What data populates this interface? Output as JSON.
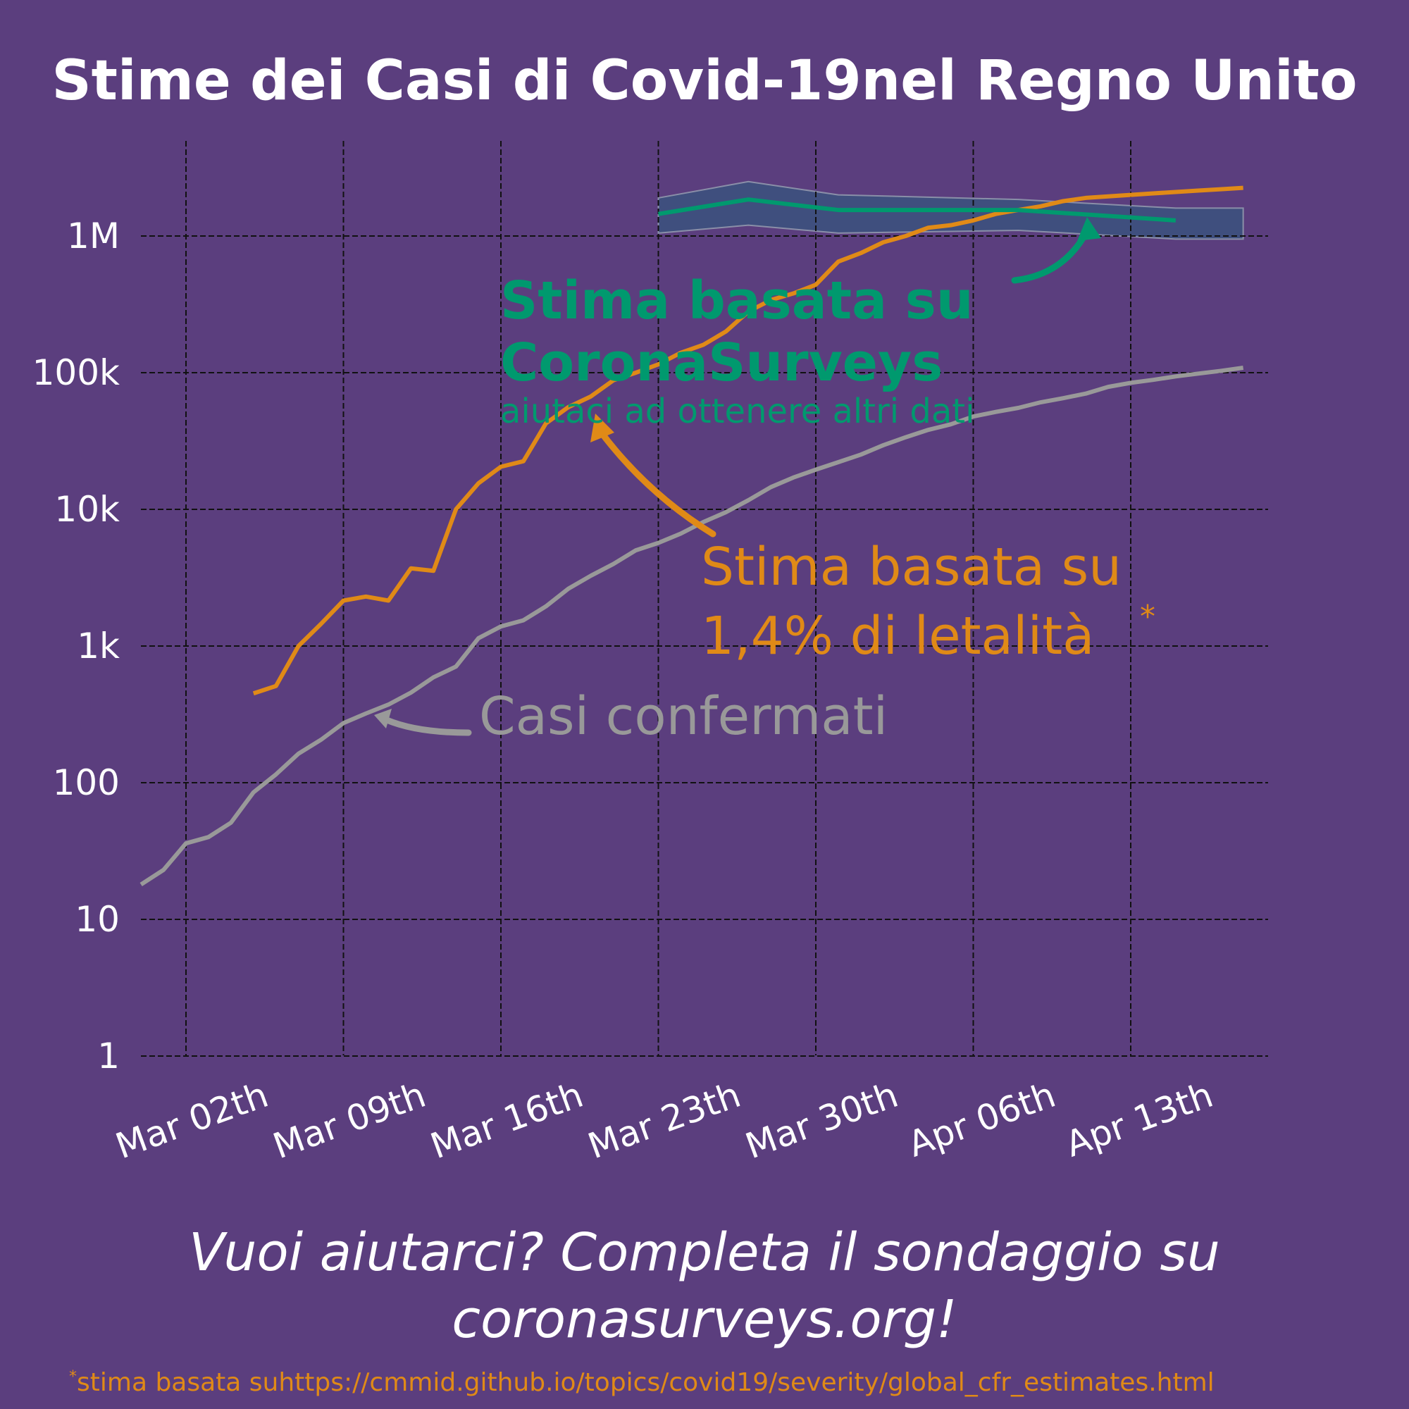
{
  "title": "Stime dei Casi di Covid-19nel Regno Unito",
  "chart_data": {
    "type": "line",
    "yscale": "log",
    "grid": true,
    "ylim": [
      1,
      4000000
    ],
    "xlim": [
      "2020-02-25",
      "2020-04-18"
    ],
    "y_ticks": [
      {
        "value": 1,
        "label": "1"
      },
      {
        "value": 10,
        "label": "10"
      },
      {
        "value": 100,
        "label": "100"
      },
      {
        "value": 1000,
        "label": "1k"
      },
      {
        "value": 10000,
        "label": "10k"
      },
      {
        "value": 100000,
        "label": "100k"
      },
      {
        "value": 1000000,
        "label": "1M"
      }
    ],
    "x_ticks": [
      {
        "date": "2020-03-02",
        "label": "Mar 02th"
      },
      {
        "date": "2020-03-09",
        "label": "Mar 09th"
      },
      {
        "date": "2020-03-16",
        "label": "Mar 16th"
      },
      {
        "date": "2020-03-23",
        "label": "Mar 23th"
      },
      {
        "date": "2020-03-30",
        "label": "Mar 30th"
      },
      {
        "date": "2020-04-06",
        "label": "Apr 06th"
      },
      {
        "date": "2020-04-13",
        "label": "Apr 13th"
      }
    ],
    "series": [
      {
        "name": "Casi confermati",
        "color": "#999999",
        "x": [
          "2020-02-29",
          "2020-03-01",
          "2020-03-02",
          "2020-03-03",
          "2020-03-04",
          "2020-03-05",
          "2020-03-06",
          "2020-03-07",
          "2020-03-08",
          "2020-03-09",
          "2020-03-10",
          "2020-03-11",
          "2020-03-12",
          "2020-03-13",
          "2020-03-14",
          "2020-03-15",
          "2020-03-16",
          "2020-03-17",
          "2020-03-18",
          "2020-03-19",
          "2020-03-20",
          "2020-03-21",
          "2020-03-22",
          "2020-03-23",
          "2020-03-24",
          "2020-03-25",
          "2020-03-26",
          "2020-03-27",
          "2020-03-28",
          "2020-03-29",
          "2020-03-30",
          "2020-03-31",
          "2020-04-01",
          "2020-04-02",
          "2020-04-03",
          "2020-04-04",
          "2020-04-05",
          "2020-04-06",
          "2020-04-07",
          "2020-04-08",
          "2020-04-09",
          "2020-04-10",
          "2020-04-11",
          "2020-04-12",
          "2020-04-13",
          "2020-04-14",
          "2020-04-15",
          "2020-04-16",
          "2020-04-17",
          "2020-04-18"
        ],
        "values": [
          18,
          23,
          36,
          40,
          51,
          85,
          115,
          163,
          206,
          273,
          321,
          373,
          456,
          590,
          707,
          1140,
          1391,
          1543,
          1950,
          2626,
          3269,
          3983,
          5018,
          5683,
          6650,
          8077,
          9529,
          11658,
          14543,
          17089,
          19522,
          22141,
          25150,
          29474,
          33718,
          38168,
          41903,
          47806,
          51608,
          55242,
          60733,
          65077,
          70272,
          78758,
          84279,
          88621,
          93873,
          98476,
          103093,
          108692
        ]
      },
      {
        "name": "Stima basata su 1,4% di letalità",
        "color": "#e08a17",
        "x": [
          "2020-03-05",
          "2020-03-06",
          "2020-03-07",
          "2020-03-08",
          "2020-03-09",
          "2020-03-10",
          "2020-03-11",
          "2020-03-12",
          "2020-03-13",
          "2020-03-14",
          "2020-03-15",
          "2020-03-16",
          "2020-03-17",
          "2020-03-18",
          "2020-03-19",
          "2020-03-20",
          "2020-03-21",
          "2020-03-22",
          "2020-03-23",
          "2020-03-24",
          "2020-03-25",
          "2020-03-26",
          "2020-03-27",
          "2020-03-28",
          "2020-03-29",
          "2020-03-30",
          "2020-03-31",
          "2020-04-01",
          "2020-04-02",
          "2020-04-03",
          "2020-04-04",
          "2020-04-05",
          "2020-04-06",
          "2020-04-07",
          "2020-04-08",
          "2020-04-09",
          "2020-04-10",
          "2020-04-11",
          "2020-04-12",
          "2020-04-13",
          "2020-04-14",
          "2020-04-15",
          "2020-04-16",
          "2020-04-17",
          "2020-04-18"
        ],
        "values": [
          450,
          510,
          1000,
          1450,
          2150,
          2300,
          2150,
          3700,
          3550,
          10000,
          15500,
          20500,
          22500,
          42500,
          56000,
          67000,
          88000,
          100000,
          115000,
          140000,
          160000,
          200000,
          280000,
          340000,
          380000,
          440000,
          650000,
          750000,
          900000,
          1000000,
          1150000,
          1200000,
          1300000,
          1450000,
          1550000,
          1650000,
          1800000,
          1900000,
          1950000,
          2000000,
          2050000,
          2100000,
          2150000,
          2200000,
          2250000
        ]
      },
      {
        "name": "Stima basata su CoronaSurveys",
        "color": "#00996e",
        "band_color": "#3f4f7e",
        "x": [
          "2020-03-23",
          "2020-03-27",
          "2020-03-31",
          "2020-04-08",
          "2020-04-15"
        ],
        "values": [
          1450000,
          1850000,
          1550000,
          1550000,
          1300000
        ],
        "lower": [
          1050000,
          1200000,
          1050000,
          1100000,
          950000
        ],
        "upper": [
          1900000,
          2500000,
          2000000,
          1850000,
          1600000
        ]
      }
    ],
    "annotations": {
      "surveys_title_1": "Stima basata su",
      "surveys_title_2": "CoronaSurveys",
      "surveys_sub": "aiutaci ad ottenere altri dati",
      "cfr_1": "Stima basata su",
      "cfr_2": "1,4% di letalità",
      "cfr_star": "*",
      "confirmed": "Casi confermati"
    }
  },
  "cta_line1": "Vuoi aiutarci? Completa il sondaggio su",
  "cta_line2": "coronasurveys.org!",
  "footnote_star": "*",
  "footnote_text": "stima basata suhttps://cmmid.github.io/topics/covid19/severity/global_cfr_estimates.html"
}
